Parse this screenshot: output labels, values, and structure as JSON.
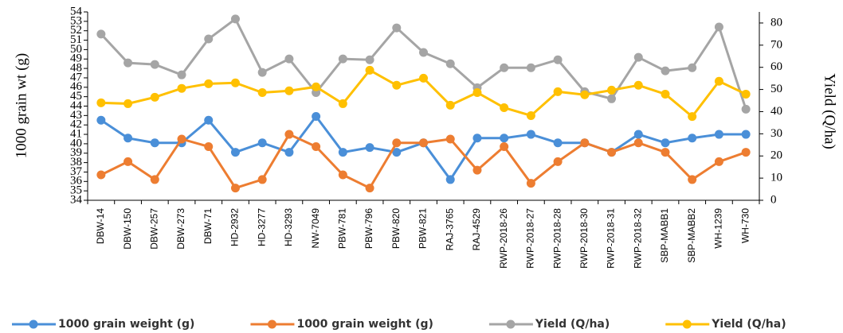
{
  "chart_data": {
    "type": "line",
    "categories": [
      "DBW-14",
      "DBW-150",
      "DBW-257",
      "DBW-273",
      "DBW-71",
      "HD-2932",
      "HD-3277",
      "HD-3293",
      "NW-7049",
      "PBW-781",
      "PBW-796",
      "PBW-820",
      "PBW-821",
      "RAJ-3765",
      "RAJ-4529",
      "RWP-2018-26",
      "RWP-2018-27",
      "RWP-2018-28",
      "RWP-2018-30",
      "RWP-2018-31",
      "RWP-2018-32",
      "SBP-MABB1",
      "SBP-MABB2",
      "WH-1239",
      "WH-730"
    ],
    "y_label": "1000 grain wt (g)",
    "y2_label": "Yield (Q/ha)",
    "ylim": [
      34,
      54
    ],
    "yticks": [
      34,
      35,
      36,
      37,
      38,
      39,
      40,
      41,
      42,
      43,
      44,
      45,
      46,
      47,
      48,
      49,
      50,
      51,
      52,
      53,
      54
    ],
    "y2lim": [
      0,
      85
    ],
    "y2ticks": [
      0,
      10,
      20,
      30,
      40,
      50,
      60,
      70,
      80
    ],
    "grid": false,
    "legend": "bottom",
    "series": [
      {
        "name": "1000 grain weight (g)",
        "color": "#4a8fd8",
        "values": [
          42.5,
          40.6,
          40.1,
          40.1,
          42.5,
          39.1,
          40.1,
          39.1,
          42.9,
          39.1,
          39.6,
          39.1,
          40.1,
          36.2,
          40.6,
          40.6,
          41.0,
          40.1,
          40.1,
          39.1,
          41.0,
          40.1,
          40.6,
          41.0,
          41.0
        ]
      },
      {
        "name": "1000 grain weight (g)",
        "color": "#ed7d31",
        "values": [
          36.7,
          38.1,
          36.2,
          40.5,
          39.7,
          35.3,
          36.2,
          41.0,
          39.7,
          36.7,
          35.3,
          40.1,
          40.1,
          40.5,
          37.2,
          39.7,
          35.8,
          38.1,
          40.1,
          39.1,
          40.1,
          39.1,
          36.2,
          38.1,
          39.1
        ]
      },
      {
        "name": "Yield (Q/ha)",
        "color": "#a5a5a5",
        "axis": "y2",
        "values": [
          75.0,
          62.0,
          61.3,
          56.6,
          72.8,
          81.8,
          57.7,
          63.8,
          48.6,
          63.8,
          63.4,
          77.8,
          66.7,
          61.6,
          50.8,
          59.8,
          59.8,
          63.4,
          49.0,
          45.8,
          64.5,
          58.4,
          59.8,
          78.2,
          41.1
        ]
      },
      {
        "name": "Yield (Q/ha)",
        "color": "#ffc000",
        "axis": "y2",
        "values": [
          44.0,
          43.6,
          46.5,
          50.5,
          52.6,
          53.0,
          48.6,
          49.4,
          51.2,
          43.6,
          58.7,
          51.9,
          55.1,
          42.9,
          48.6,
          41.8,
          38.2,
          49.0,
          47.6,
          49.7,
          51.9,
          47.9,
          37.8,
          53.7,
          47.9
        ]
      }
    ]
  }
}
